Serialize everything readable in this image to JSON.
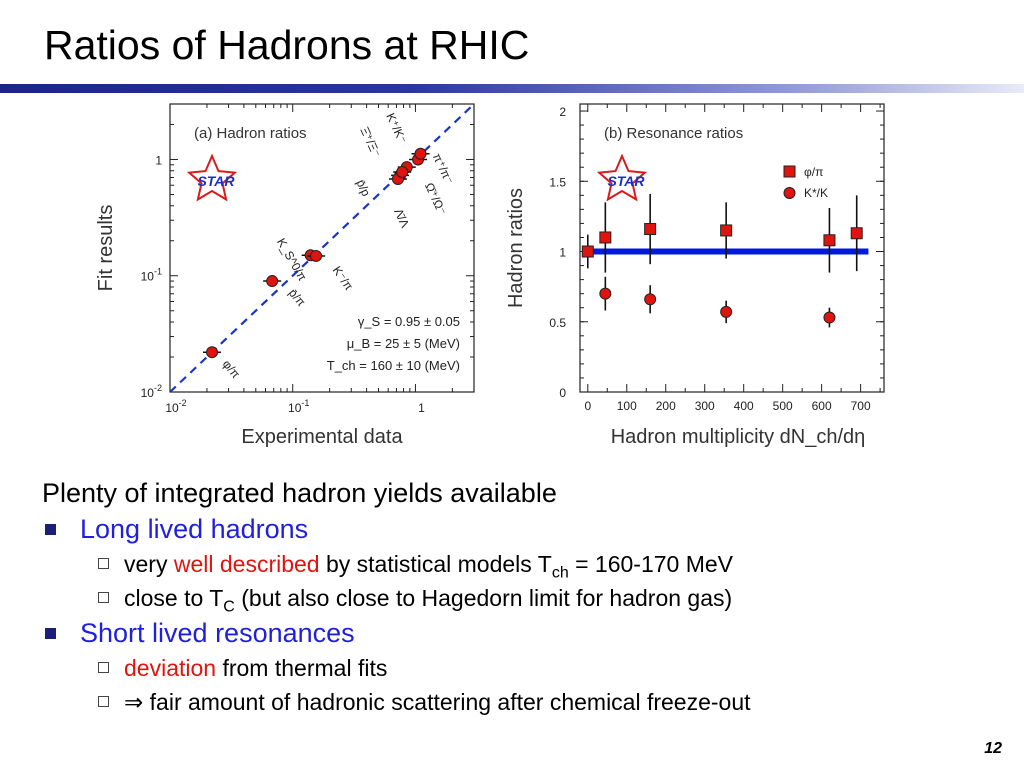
{
  "title": "Ratios of Hadrons at RHIC",
  "page_number": "12",
  "colors": {
    "title_rule": "#1b2588",
    "bullet_blue": "#1f1fdc",
    "highlight_red": "#e0140f",
    "marker_red": "#e0140f",
    "fit_line_blue": "#0018e0",
    "dashed_line_blue": "#1a35c8"
  },
  "bullets": {
    "heading": "Plenty of integrated hadron yields available",
    "items": [
      {
        "label": "Long lived hadrons",
        "sub": [
          {
            "pre": "very ",
            "red": "well described",
            "post": " by statistical models T",
            "subscript": "ch",
            "tail": " = 160-170 MeV"
          },
          {
            "pre": "close to T",
            "subscript": "C",
            "tail": " (but also close to Hagedorn limit for hadron gas)"
          }
        ]
      },
      {
        "label": "Short lived resonances",
        "sub": [
          {
            "red": "deviation",
            "post": " from thermal fits"
          },
          {
            "arrow": "⇒",
            "post": " fair amount of hadronic scattering after chemical freeze-out"
          }
        ]
      }
    ]
  },
  "chart_data": [
    {
      "type": "scatter",
      "panel_label": "(a) Hadron ratios",
      "logo_text": "STAR",
      "xlabel": "Experimental data",
      "ylabel": "Fit results",
      "xscale": "log",
      "yscale": "log",
      "xlim": [
        0.01,
        3
      ],
      "ylim": [
        0.01,
        3
      ],
      "x_tick_labels": [
        {
          "base": "10",
          "exp": "-2",
          "value": 0.01
        },
        {
          "base": "10",
          "exp": "-1",
          "value": 0.1
        },
        {
          "base": "1",
          "exp": "",
          "value": 1
        }
      ],
      "y_tick_labels": [
        {
          "base": "10",
          "exp": "-2",
          "value": 0.01
        },
        {
          "base": "10",
          "exp": "-1",
          "value": 0.1
        },
        {
          "base": "1",
          "exp": "",
          "value": 1
        }
      ],
      "diagonal": "dashed y = x",
      "points": [
        {
          "label": "φ/π",
          "x": 0.022,
          "y": 0.022
        },
        {
          "label": "p̄/π",
          "x": 0.068,
          "y": 0.09
        },
        {
          "label": "K_S^0/π",
          "x": 0.14,
          "y": 0.15
        },
        {
          "label": "K⁻/π",
          "x": 0.155,
          "y": 0.148
        },
        {
          "label": "Ξ̄⁺/Ξ⁻",
          "x": 0.75,
          "y": 0.73
        },
        {
          "label": "Ω̄⁺/Ω⁻",
          "x": 0.85,
          "y": 0.86
        },
        {
          "label": "Λ̄/Λ",
          "x": 0.72,
          "y": 0.68
        },
        {
          "label": "p̄/p",
          "x": 0.78,
          "y": 0.78
        },
        {
          "label": "K⁺/K⁻",
          "x": 1.05,
          "y": 1.0
        },
        {
          "label": "π⁺/π⁻",
          "x": 1.1,
          "y": 1.12
        }
      ],
      "annotations": [
        "γ_S = 0.95 ± 0.05",
        "μ_B = 25 ± 5 (MeV)",
        "T_ch = 160 ± 10 (MeV)"
      ]
    },
    {
      "type": "scatter",
      "panel_label": "(b) Resonance ratios",
      "logo_text": "STAR",
      "xlabel": "Hadron multiplicity dN_ch/dη",
      "ylabel": "Hadron ratios",
      "xlim": [
        -20,
        760
      ],
      "ylim": [
        0,
        2.05
      ],
      "x_ticks": [
        0,
        100,
        200,
        300,
        400,
        500,
        600,
        700
      ],
      "y_ticks": [
        0,
        0.5,
        1,
        1.5,
        2
      ],
      "y_tick_labels": [
        "0",
        "0.5",
        "1",
        "1.5",
        "2"
      ],
      "fit_line": {
        "y": 1.0,
        "x_range": [
          0,
          720
        ]
      },
      "legend": {
        "placement": "top-right",
        "entries": [
          "φ/π",
          "K*/K"
        ]
      },
      "series": [
        {
          "name": "φ/π",
          "marker": "square",
          "x": [
            0,
            45,
            160,
            355,
            620,
            690
          ],
          "y": [
            1.0,
            1.1,
            1.16,
            1.15,
            1.08,
            1.13
          ],
          "yerr": [
            0.12,
            0.25,
            0.25,
            0.2,
            0.23,
            0.27
          ]
        },
        {
          "name": "K*/K",
          "marker": "circle",
          "x": [
            45,
            160,
            355,
            620
          ],
          "y": [
            0.7,
            0.66,
            0.57,
            0.53
          ],
          "yerr": [
            0.12,
            0.1,
            0.08,
            0.07
          ]
        }
      ]
    }
  ]
}
